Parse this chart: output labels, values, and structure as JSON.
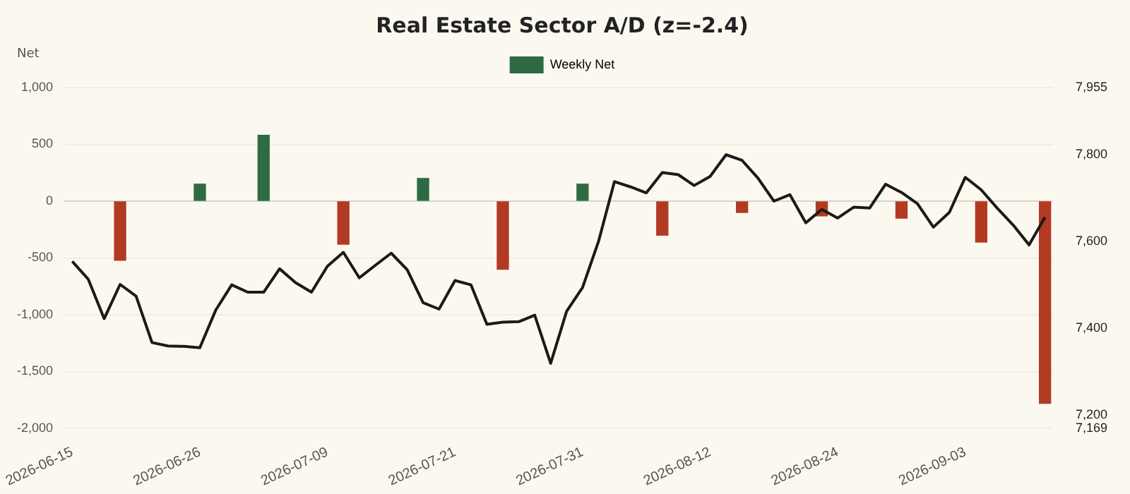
{
  "chart_data": {
    "type": "bar",
    "title": "Real Estate Sector A/D (z=-2.4)",
    "ylabel": "Net",
    "categories": [
      "2026-06-15",
      null,
      null,
      null,
      null,
      null,
      null,
      null,
      "2026-06-26",
      null,
      null,
      null,
      null,
      null,
      null,
      null,
      "2026-07-09",
      null,
      null,
      null,
      null,
      null,
      null,
      null,
      "2026-07-21",
      null,
      null,
      null,
      null,
      null,
      null,
      null,
      "2026-07-31",
      null,
      null,
      null,
      null,
      null,
      null,
      null,
      "2026-08-12",
      null,
      null,
      null,
      null,
      null,
      null,
      null,
      "2026-08-24",
      null,
      null,
      null,
      null,
      null,
      null,
      null,
      "2026-09-03",
      null,
      null,
      null,
      null,
      null
    ],
    "series": [
      {
        "name": "Weekly Net",
        "color": "#2e6b45",
        "colors": [
          "#2e6b45",
          "#2e6b45",
          "#2e6b45",
          "#b33a22",
          "#2e6b45",
          "#2e6b45",
          "#2e6b45",
          "#2e6b45",
          "#2e6b45",
          "#2e6b45",
          "#2e6b45",
          "#2e6b45",
          "#2e6b45",
          "#2e6b45",
          "#2e6b45",
          "#2e6b45",
          "#2e6b45",
          "#b33a22",
          "#2e6b45",
          "#2e6b45",
          "#2e6b45",
          "#2e6b45",
          "#2e6b45",
          "#2e6b45",
          "#2e6b45",
          "#2e6b45",
          "#2e6b45",
          "#b33a22",
          "#2e6b45",
          "#2e6b45",
          "#2e6b45",
          "#2e6b45",
          "#2e6b45",
          "#2e6b45",
          "#2e6b45",
          "#2e6b45",
          "#2e6b45",
          "#b33a22",
          "#2e6b45",
          "#2e6b45",
          "#2e6b45",
          "#2e6b45",
          "#b33a22",
          "#2e6b45",
          "#2e6b45",
          "#2e6b45",
          "#2e6b45",
          "#b33a22",
          "#2e6b45",
          "#2e6b45",
          "#2e6b45",
          "#2e6b45",
          "#b33a22",
          "#2e6b45",
          "#2e6b45",
          "#2e6b45",
          "#2e6b45",
          "#b33a22",
          "#2e6b45",
          "#2e6b45",
          "#2e6b45",
          "#b33a22"
        ],
        "values": [
          null,
          null,
          null,
          -520,
          null,
          null,
          null,
          null,
          150,
          null,
          null,
          null,
          580,
          null,
          null,
          null,
          null,
          -380,
          null,
          null,
          null,
          null,
          200,
          null,
          null,
          null,
          null,
          -600,
          null,
          null,
          null,
          null,
          150,
          null,
          null,
          null,
          null,
          -300,
          null,
          null,
          null,
          null,
          -100,
          null,
          null,
          null,
          null,
          -130,
          null,
          null,
          null,
          null,
          -150,
          null,
          null,
          null,
          null,
          -360,
          null,
          null,
          null,
          -1780
        ]
      },
      {
        "type": "line",
        "axis": "y2",
        "color": "#1a1a1a",
        "marker": "none",
        "line_style": "solid",
        "values": [
          7554,
          7513,
          7422,
          7501,
          7474,
          7367,
          7359,
          7358,
          7355,
          7442,
          7500,
          7483,
          7483,
          7537,
          7505,
          7483,
          7543,
          7575,
          7516,
          7545,
          7573,
          7535,
          7459,
          7444,
          7510,
          7500,
          7409,
          7414,
          7415,
          7430,
          7319,
          7439,
          7494,
          7600,
          7738,
          7726,
          7712,
          7759,
          7754,
          7729,
          7750,
          7800,
          7787,
          7746,
          7693,
          7708,
          7643,
          7674,
          7654,
          7679,
          7677,
          7732,
          7713,
          7687,
          7633,
          7667,
          7748,
          7719,
          7677,
          7638,
          7592,
          7656
        ]
      }
    ],
    "ylim": [
      -2000,
      1000
    ],
    "yticks": [
      {
        "value": -2000,
        "label": "-2,000"
      },
      {
        "value": -1500,
        "label": "-1,500"
      },
      {
        "value": -1000,
        "label": "-1,000"
      },
      -500,
      0,
      500,
      {
        "value": 1000,
        "label": "1,000"
      }
    ],
    "y2lim": [
      7169,
      7955
    ],
    "y2ticks": [
      {
        "value": 7169,
        "label": "7,169"
      },
      {
        "value": 7200,
        "label": "7,200"
      },
      {
        "value": 7400,
        "label": "7,400"
      },
      {
        "value": 7600,
        "label": "7,600"
      },
      {
        "value": 7800,
        "label": "7,800"
      },
      {
        "value": 7955,
        "label": "7,955"
      }
    ],
    "grid": "y",
    "legend": "top"
  }
}
